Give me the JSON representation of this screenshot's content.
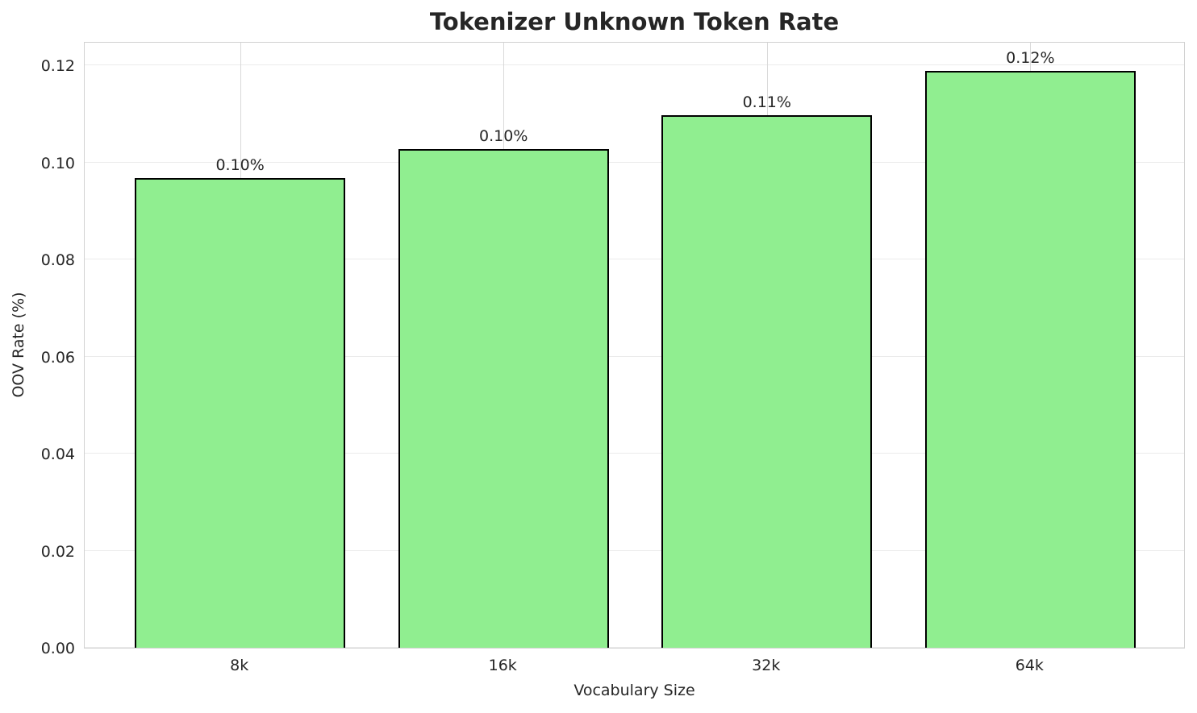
{
  "chart_data": {
    "type": "bar",
    "title": "Tokenizer Unknown Token Rate",
    "xlabel": "Vocabulary Size",
    "ylabel": "OOV Rate (%)",
    "categories": [
      "8k",
      "16k",
      "32k",
      "64k"
    ],
    "values": [
      0.0967,
      0.1028,
      0.1097,
      0.1189
    ],
    "bar_labels": [
      "0.10%",
      "0.10%",
      "0.11%",
      "0.12%"
    ],
    "ytick_values": [
      0.0,
      0.02,
      0.04,
      0.06,
      0.08,
      0.1,
      0.12
    ],
    "ytick_labels": [
      "0.00",
      "0.02",
      "0.04",
      "0.06",
      "0.08",
      "0.10",
      "0.12"
    ],
    "ylim": [
      0,
      0.125
    ],
    "grid": true,
    "legend_position": "none",
    "bar_color": "#90EE90",
    "bar_edge_color": "#000000",
    "hgrid_color": "#ebebeb",
    "vgrid_color": "#d9d9d9",
    "spine_color": "#d2d2d2",
    "text_color": "#262626",
    "background_color": "#ffffff"
  }
}
